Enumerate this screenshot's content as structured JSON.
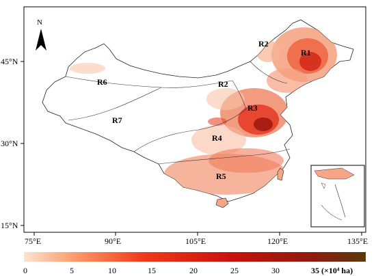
{
  "map": {
    "north_label": "N",
    "lon_ticks": [
      "75°E",
      "90°E",
      "105°E",
      "120°E",
      "135°E"
    ],
    "lat_ticks": [
      "45°N",
      "30°N",
      "15°N"
    ],
    "regions": [
      {
        "id": "R1",
        "label": "R1"
      },
      {
        "id": "R2a",
        "label": "R2"
      },
      {
        "id": "R2b",
        "label": "R2"
      },
      {
        "id": "R3",
        "label": "R3"
      },
      {
        "id": "R4",
        "label": "R4"
      },
      {
        "id": "R5",
        "label": "R5"
      },
      {
        "id": "R6",
        "label": "R6"
      },
      {
        "id": "R7",
        "label": "R7"
      }
    ],
    "inset": "south-china-sea"
  },
  "legend": {
    "tick_labels": [
      "0",
      "5",
      "10",
      "15",
      "20",
      "25",
      "30",
      "35 (×10⁴ ha)"
    ],
    "min": 0,
    "max": 35,
    "colors": [
      "#fde3cf",
      "#fb9a6a",
      "#f03a1a",
      "#c8120c",
      "#8c1b0e",
      "#5a3a0a"
    ]
  }
}
